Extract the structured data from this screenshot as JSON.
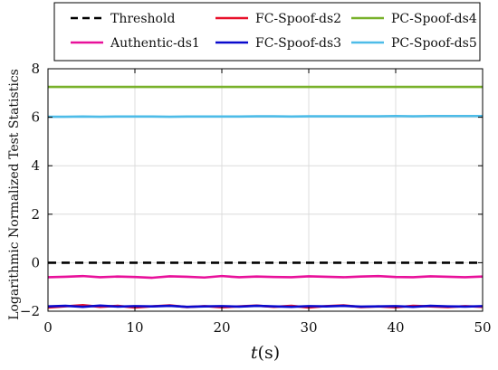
{
  "chart_data": {
    "type": "line",
    "title": "",
    "xlabel": "t(s)",
    "ylabel": "Logarithmic Normalized Test Statistics",
    "xlim": [
      0,
      50
    ],
    "ylim": [
      -2,
      8
    ],
    "xticks": [
      0,
      10,
      20,
      30,
      40,
      50
    ],
    "yticks": [
      -2,
      0,
      2,
      4,
      6,
      8
    ],
    "grid": true,
    "legend_position": "top",
    "x": [
      0,
      2,
      4,
      6,
      8,
      10,
      12,
      14,
      16,
      18,
      20,
      22,
      24,
      26,
      28,
      30,
      32,
      34,
      36,
      38,
      40,
      42,
      44,
      46,
      48,
      50
    ],
    "series": [
      {
        "name": "Threshold",
        "color": "#000000",
        "style": "dashed",
        "values": [
          0,
          0,
          0,
          0,
          0,
          0,
          0,
          0,
          0,
          0,
          0,
          0,
          0,
          0,
          0,
          0,
          0,
          0,
          0,
          0,
          0,
          0,
          0,
          0,
          0,
          0
        ]
      },
      {
        "name": "Authentic-ds1",
        "color": "#e8109a",
        "style": "solid",
        "values": [
          -0.6,
          -0.58,
          -0.55,
          -0.6,
          -0.57,
          -0.59,
          -0.62,
          -0.56,
          -0.58,
          -0.61,
          -0.55,
          -0.6,
          -0.57,
          -0.59,
          -0.6,
          -0.56,
          -0.58,
          -0.6,
          -0.57,
          -0.55,
          -0.59,
          -0.6,
          -0.56,
          -0.58,
          -0.6,
          -0.57
        ]
      },
      {
        "name": "FC-Spoof-ds2",
        "color": "#e8102a",
        "style": "solid",
        "values": [
          -1.85,
          -1.8,
          -1.75,
          -1.82,
          -1.78,
          -1.85,
          -1.8,
          -1.76,
          -1.83,
          -1.79,
          -1.84,
          -1.8,
          -1.77,
          -1.82,
          -1.78,
          -1.85,
          -1.79,
          -1.76,
          -1.83,
          -1.8,
          -1.84,
          -1.78,
          -1.8,
          -1.83,
          -1.79,
          -1.82
        ]
      },
      {
        "name": "FC-Spoof-ds3",
        "color": "#0a0acd",
        "style": "solid",
        "values": [
          -1.8,
          -1.78,
          -1.82,
          -1.77,
          -1.81,
          -1.79,
          -1.8,
          -1.78,
          -1.82,
          -1.8,
          -1.79,
          -1.81,
          -1.78,
          -1.8,
          -1.82,
          -1.79,
          -1.8,
          -1.78,
          -1.81,
          -1.8,
          -1.79,
          -1.82,
          -1.78,
          -1.8,
          -1.81,
          -1.79
        ]
      },
      {
        "name": "PC-Spoof-ds4",
        "color": "#78b12a",
        "style": "solid",
        "values": [
          7.25,
          7.25,
          7.25,
          7.25,
          7.25,
          7.25,
          7.25,
          7.25,
          7.25,
          7.25,
          7.25,
          7.25,
          7.25,
          7.25,
          7.25,
          7.25,
          7.25,
          7.25,
          7.25,
          7.25,
          7.25,
          7.25,
          7.25,
          7.25,
          7.25,
          7.25
        ]
      },
      {
        "name": "PC-Spoof-ds5",
        "color": "#4dbce8",
        "style": "solid",
        "values": [
          6.02,
          6.02,
          6.03,
          6.02,
          6.03,
          6.03,
          6.03,
          6.02,
          6.03,
          6.03,
          6.03,
          6.03,
          6.04,
          6.04,
          6.03,
          6.04,
          6.04,
          6.04,
          6.04,
          6.04,
          6.05,
          6.04,
          6.05,
          6.05,
          6.05,
          6.05
        ]
      }
    ]
  }
}
